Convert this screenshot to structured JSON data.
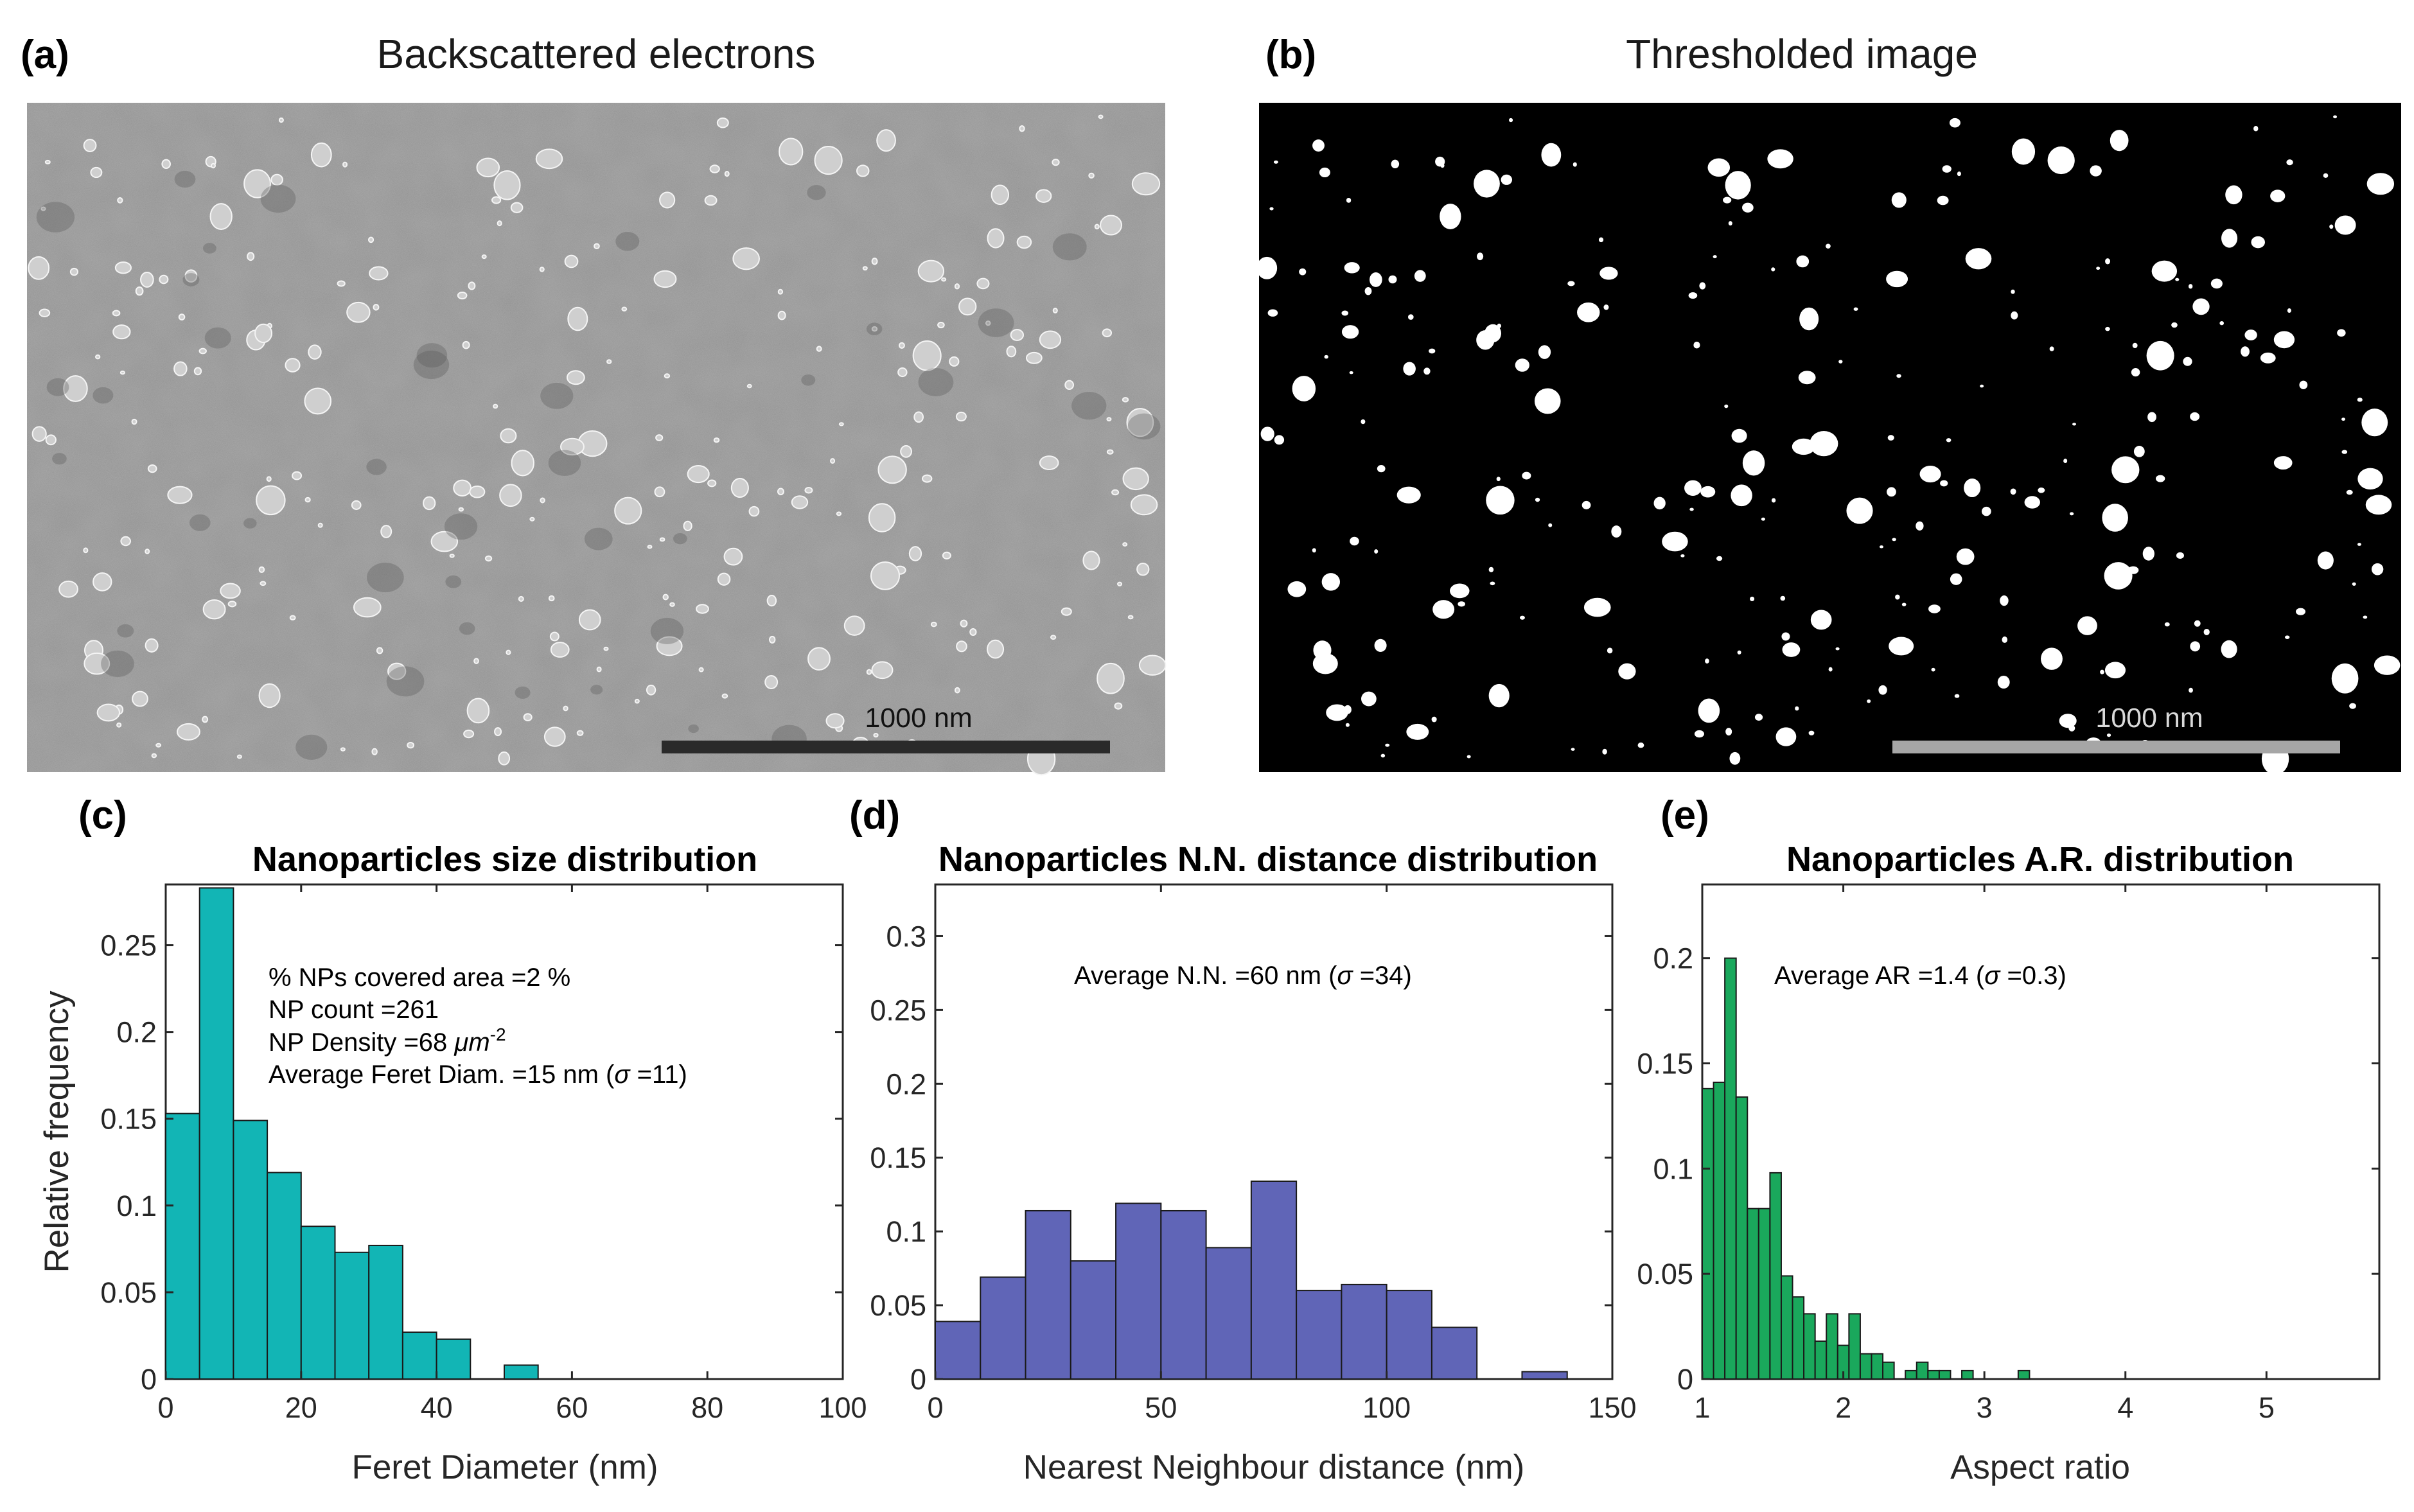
{
  "panels": {
    "a": {
      "label": "(a)",
      "title": "Backscattered electrons",
      "scale_bar": "1000 nm"
    },
    "b": {
      "label": "(b)",
      "title": "Thresholded image",
      "scale_bar": "1000 nm"
    }
  },
  "colors": {
    "c": "#12b5b5",
    "d": "#6065b7",
    "e": "#1aa85c",
    "edge": "#1a1a1a"
  },
  "chart_data": [
    {
      "id": "c",
      "type": "bar",
      "panel_label": "(c)",
      "title": "Nanoparticles size distribution",
      "xlabel": "Feret Diameter (nm)",
      "ylabel": "Relative frequency",
      "xlim": [
        0,
        100
      ],
      "ylim": [
        0,
        0.285
      ],
      "xticks": [
        0,
        20,
        40,
        60,
        80,
        100
      ],
      "yticks": [
        0,
        0.05,
        0.1,
        0.15,
        0.2,
        0.25
      ],
      "bin_width": 5,
      "bin_starts": [
        0,
        5,
        10,
        15,
        20,
        25,
        30,
        35,
        40,
        45,
        50
      ],
      "values": [
        0.153,
        0.283,
        0.149,
        0.119,
        0.088,
        0.073,
        0.077,
        0.027,
        0.023,
        0,
        0.008
      ],
      "annotation": {
        "lines": [
          "% NPs covered area =2 %",
          "NP count =261"
        ],
        "density_prefix": "NP Density =68 ",
        "density_unit": "μm",
        "density_exp": "-2",
        "feret_prefix": "Average Feret Diam. =15 nm (",
        "sigma": "σ",
        "feret_suffix": " =11)"
      }
    },
    {
      "id": "d",
      "type": "bar",
      "panel_label": "(d)",
      "title": "Nanoparticles N.N. distance distribution",
      "xlabel": "Nearest Neighbour distance (nm)",
      "ylabel": "",
      "xlim": [
        0,
        150
      ],
      "ylim": [
        0,
        0.335
      ],
      "xticks": [
        0,
        50,
        100,
        150
      ],
      "yticks": [
        0,
        0.05,
        0.1,
        0.15,
        0.2,
        0.25,
        0.3
      ],
      "bin_width": 10,
      "bin_starts": [
        0,
        10,
        20,
        30,
        40,
        50,
        60,
        70,
        80,
        90,
        100,
        110,
        120,
        130
      ],
      "values": [
        0.039,
        0.069,
        0.114,
        0.08,
        0.119,
        0.114,
        0.089,
        0.134,
        0.06,
        0.064,
        0.06,
        0.035,
        0,
        0.005
      ],
      "annotation": {
        "prefix": "Average N.N. =60 nm (",
        "sigma": "σ",
        "suffix": " =34)"
      }
    },
    {
      "id": "e",
      "type": "bar",
      "panel_label": "(e)",
      "title": "Nanoparticles A.R. distribution",
      "xlabel": "Aspect ratio",
      "ylabel": "",
      "xlim": [
        1,
        5.8
      ],
      "ylim": [
        0,
        0.235
      ],
      "xticks": [
        1,
        2,
        3,
        4,
        5
      ],
      "yticks": [
        0,
        0.05,
        0.1,
        0.15,
        0.2
      ],
      "bin_width": 0.08,
      "bin_starts": [
        1.0,
        1.08,
        1.16,
        1.24,
        1.32,
        1.4,
        1.48,
        1.56,
        1.64,
        1.72,
        1.8,
        1.88,
        1.96,
        2.04,
        2.12,
        2.2,
        2.28,
        2.36,
        2.44,
        2.52,
        2.6,
        2.68,
        2.76,
        2.84,
        2.92,
        3.0,
        3.08,
        3.16,
        3.24
      ],
      "values": [
        0.138,
        0.141,
        0.2,
        0.134,
        0.081,
        0.081,
        0.098,
        0.049,
        0.039,
        0.031,
        0.018,
        0.031,
        0.016,
        0.031,
        0.012,
        0.012,
        0.008,
        0,
        0.004,
        0.008,
        0.004,
        0.004,
        0,
        0.004,
        0,
        0,
        0,
        0,
        0.004
      ],
      "annotation": {
        "prefix": "Average AR =1.4 (",
        "sigma": "σ",
        "suffix": " =0.3)"
      }
    }
  ]
}
